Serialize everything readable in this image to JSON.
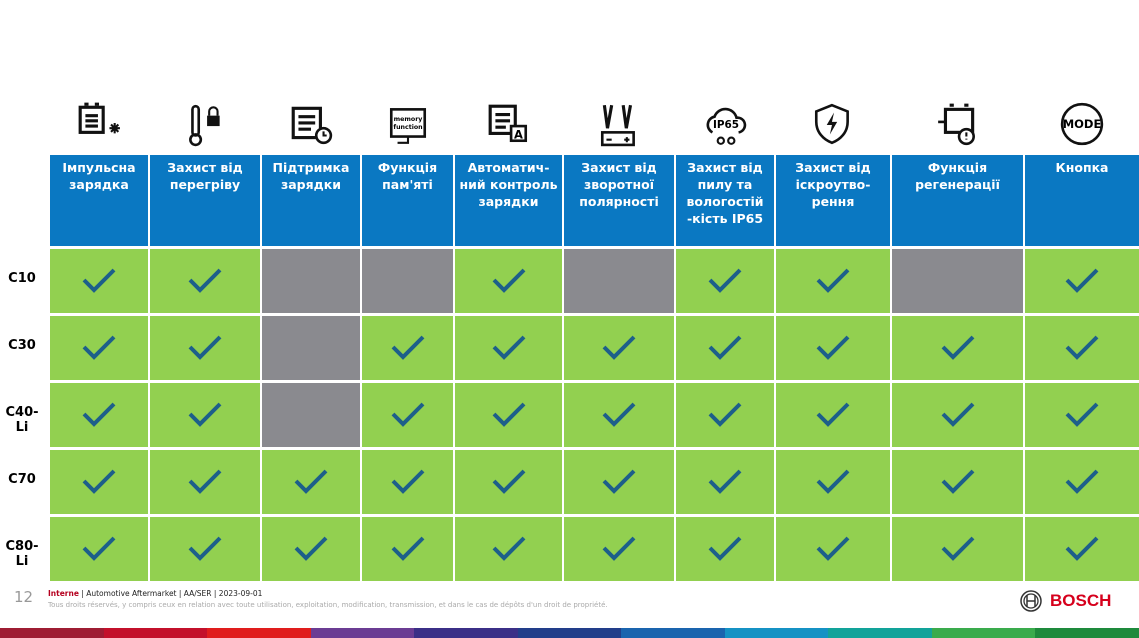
{
  "columns": [
    {
      "label": "Імпульсна зарядка",
      "icon": "battery-snowflake-icon"
    },
    {
      "label": "Захист від перегріву",
      "icon": "thermometer-lock-icon"
    },
    {
      "label": "Підтримка зарядки",
      "icon": "battery-clock-icon"
    },
    {
      "label": "Функція пам'яті",
      "icon": "memory-function-icon",
      "icon_text": "memory function"
    },
    {
      "label": "Автоматич-ний контроль зарядки",
      "icon": "battery-auto-icon",
      "icon_text": "A"
    },
    {
      "label": "Захист від зворотної полярності",
      "icon": "clamps-polarity-icon"
    },
    {
      "label": "Захист від пилу та вологостій -кість IP65",
      "icon": "cloud-ip65-icon",
      "icon_text": "IP65"
    },
    {
      "label": "Захист від іскроутво-рення",
      "icon": "shield-lightning-icon"
    },
    {
      "label": "Функція регенерації",
      "icon": "battery-regeneration-icon"
    },
    {
      "label": "Кнопка",
      "icon": "mode-button-icon",
      "icon_text": "MODE"
    }
  ],
  "rows": [
    {
      "model": "C10",
      "features": [
        1,
        1,
        0,
        0,
        1,
        0,
        1,
        1,
        0,
        1
      ]
    },
    {
      "model": "C30",
      "features": [
        1,
        1,
        0,
        1,
        1,
        1,
        1,
        1,
        1,
        1
      ]
    },
    {
      "model": "C40-Li",
      "features": [
        1,
        1,
        0,
        1,
        1,
        1,
        1,
        1,
        1,
        1
      ]
    },
    {
      "model": "C70",
      "features": [
        1,
        1,
        1,
        1,
        1,
        1,
        1,
        1,
        1,
        1
      ]
    },
    {
      "model": "C80-Li",
      "features": [
        1,
        1,
        1,
        1,
        1,
        1,
        1,
        1,
        1,
        1
      ]
    }
  ],
  "colors": {
    "header": "#0a78c2",
    "supported": "#92d050",
    "unsupported": "#8a8a8f",
    "check": "#1d5f8a",
    "brand": "#d6001c"
  },
  "footer": {
    "page": "12",
    "classification": "Interne",
    "info": " | Automotive Aftermarket | AA/SER | 2023-09-01",
    "rights": "Tous droits réservés, y compris ceux en relation avec toute utilisation, exploitation, modification, transmission, et dans le cas de dépôts d'un droit de propriété.",
    "brand": "BOSCH"
  }
}
